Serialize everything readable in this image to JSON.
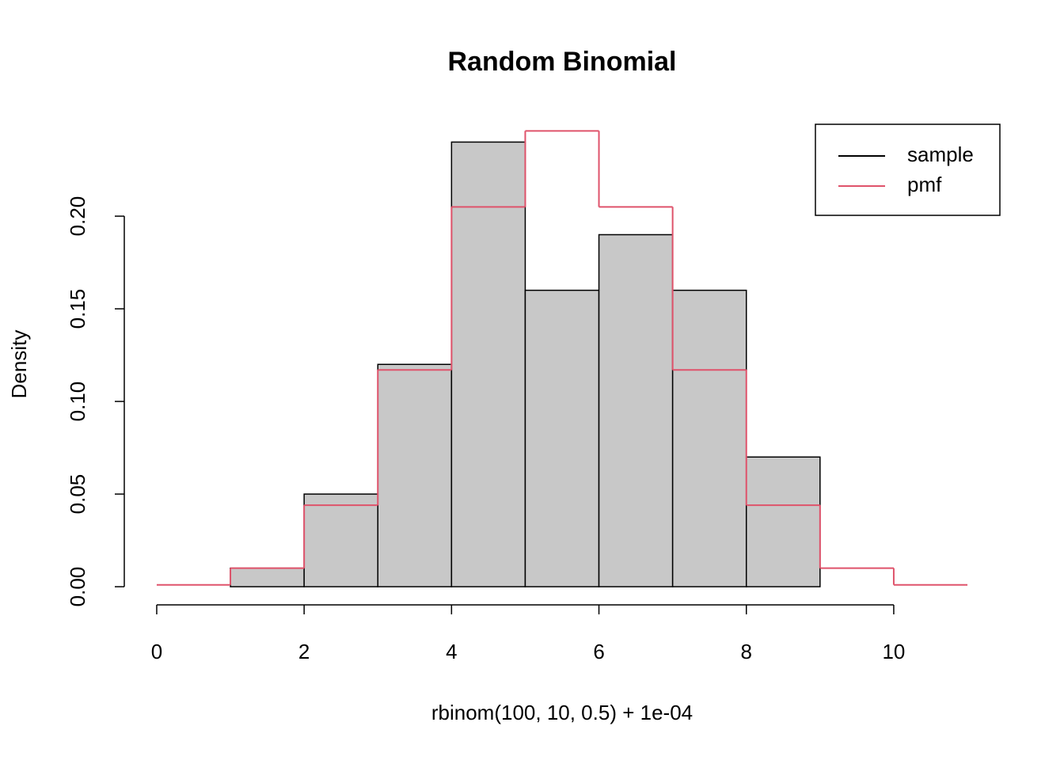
{
  "chart_data": {
    "type": "histogram",
    "title": "Random Binomial",
    "x_label": "rbinom(100, 10, 0.5) + 1e-04",
    "y_label": "Density",
    "xlim": [
      -0.44,
      11.44
    ],
    "ylim": [
      -0.0098,
      0.256
    ],
    "xticks": [
      0,
      2,
      4,
      6,
      8,
      10
    ],
    "yticks": [
      {
        "value": 0,
        "label": "0.00"
      },
      {
        "value": 0.05,
        "label": "0.05"
      },
      {
        "value": 0.1,
        "label": "0.10"
      },
      {
        "value": 0.15,
        "label": "0.15"
      },
      {
        "value": 0.2,
        "label": "0.20"
      }
    ],
    "legend": "topright",
    "series": [
      {
        "name": "sample",
        "type": "histogram",
        "color": "#000000",
        "fill": "#c8c8c8",
        "bins": [
          1,
          2,
          3,
          4,
          5,
          6,
          7,
          8,
          9
        ],
        "values": [
          0.01,
          0.05,
          0.12,
          0.24,
          0.16,
          0.19,
          0.16,
          0.07
        ]
      },
      {
        "name": "pmf",
        "type": "step",
        "color": "#df536b",
        "bins": [
          0,
          1,
          2,
          3,
          4,
          5,
          6,
          7,
          8,
          9,
          10,
          11
        ],
        "values": [
          0.001,
          0.01,
          0.044,
          0.117,
          0.205,
          0.246,
          0.205,
          0.117,
          0.044,
          0.01,
          0.001
        ]
      }
    ]
  }
}
